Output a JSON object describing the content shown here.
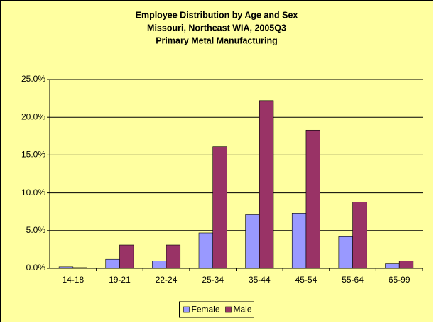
{
  "chart_data": {
    "type": "bar",
    "title": [
      "Employee Distribution by Age and Sex",
      "Missouri, Northeast WIA, 2005Q3",
      "Primary Metal Manufacturing"
    ],
    "categories": [
      "14-18",
      "19-21",
      "22-24",
      "25-34",
      "35-44",
      "45-54",
      "55-64",
      "65-99"
    ],
    "series": [
      {
        "name": "Female",
        "color": "#9999ff",
        "values": [
          0.2,
          1.2,
          1.0,
          4.7,
          7.1,
          7.3,
          4.2,
          0.6
        ]
      },
      {
        "name": "Male",
        "color": "#993366",
        "values": [
          0.1,
          3.1,
          3.1,
          16.1,
          22.2,
          18.3,
          8.8,
          1.0
        ]
      }
    ],
    "ylim": [
      0,
      25
    ],
    "yticks": [
      {
        "value": 0,
        "label": "0.0%"
      },
      {
        "value": 5,
        "label": "5.0%"
      },
      {
        "value": 10,
        "label": "10.0%"
      },
      {
        "value": 15,
        "label": "15.0%"
      },
      {
        "value": 20,
        "label": "20.0%"
      },
      {
        "value": 25,
        "label": "25.0%"
      }
    ],
    "grid": true,
    "legend": "bottom"
  }
}
